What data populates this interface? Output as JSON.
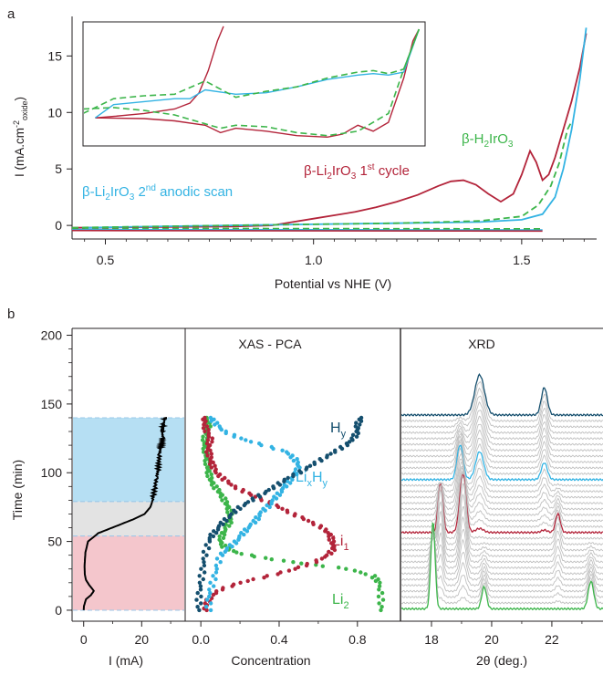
{
  "colors": {
    "red": "#b3243a",
    "cyan": "#33b3e3",
    "green": "#3cb54a",
    "navy": "#154f6e",
    "gray": "#c0c0c0",
    "blue_band": "#b6dff3",
    "gray_band": "#e3e3e3",
    "red_band": "#f4c6cc",
    "axis": "#231f20"
  },
  "panel_a": {
    "label": "a",
    "chart_data": {
      "type": "line",
      "xlabel": "Potential vs NHE (V)",
      "ylabel_parts": [
        "I (mA.cm",
        "-2",
        "oxide",
        ")"
      ],
      "xlim": [
        0.42,
        1.68
      ],
      "ylim": [
        -1.2,
        18.5
      ],
      "xticks": [
        "0.5",
        "1.0",
        "1.5"
      ],
      "xtick_values": [
        0.5,
        1.0,
        1.5
      ],
      "yticks": [
        "0",
        "5",
        "10",
        "15"
      ],
      "ytick_values": [
        0,
        5,
        10,
        15
      ],
      "series": [
        {
          "label_parts": [
            "β-Li",
            "2",
            "IrO",
            "3",
            " 1",
            "st",
            " cycle"
          ],
          "color_key": "red",
          "x": [
            0.42,
            0.6,
            0.8,
            0.9,
            0.95,
            1.0,
            1.05,
            1.1,
            1.15,
            1.2,
            1.25,
            1.3,
            1.33,
            1.36,
            1.39,
            1.42,
            1.45,
            1.48,
            1.5,
            1.52,
            1.535,
            1.55,
            1.565,
            1.58,
            1.6,
            1.62,
            1.64,
            1.655
          ],
          "y": [
            -0.2,
            -0.15,
            -0.1,
            0.0,
            0.3,
            0.6,
            0.9,
            1.2,
            1.6,
            2.1,
            2.7,
            3.5,
            3.9,
            4.0,
            3.6,
            2.8,
            2.1,
            2.8,
            4.5,
            6.6,
            5.6,
            4.0,
            4.5,
            6.0,
            8.5,
            11.0,
            14.0,
            17.0
          ]
        },
        {
          "label_parts": [
            "β-Li",
            "2",
            "IrO",
            "3",
            " 2",
            "nd",
            " anodic scan"
          ],
          "color_key": "cyan",
          "x": [
            0.45,
            0.6,
            0.8,
            1.0,
            1.2,
            1.4,
            1.5,
            1.55,
            1.58,
            1.6,
            1.62,
            1.64,
            1.655
          ],
          "y": [
            -0.2,
            -0.1,
            0.0,
            0.1,
            0.2,
            0.3,
            0.5,
            1.0,
            2.5,
            5.0,
            8.5,
            13.0,
            17.5
          ]
        },
        {
          "label_parts": [
            "β-H",
            "2",
            "IrO",
            "3"
          ],
          "color_key": "green",
          "x": [
            0.42,
            0.6,
            0.8,
            1.0,
            1.2,
            1.4,
            1.5,
            1.54,
            1.57,
            1.59,
            1.61,
            1.62
          ],
          "y": [
            -0.2,
            -0.1,
            0.0,
            0.1,
            0.2,
            0.4,
            0.8,
            1.8,
            3.5,
            5.5,
            8.5,
            9.2
          ]
        }
      ],
      "inset": {
        "cyan_x": [
          0.44,
          0.5,
          0.6,
          0.7,
          0.75,
          0.8,
          0.9,
          1.0,
          1.1,
          1.2,
          1.3,
          1.35,
          1.4,
          1.45,
          1.5
        ],
        "cyan_y": [
          0.3,
          1.2,
          1.4,
          1.6,
          1.6,
          2.2,
          1.9,
          2.0,
          2.4,
          2.9,
          3.2,
          3.3,
          3.2,
          3.4,
          6.3
        ],
        "red_upper_x": [
          0.44,
          0.5,
          0.6,
          0.7,
          0.75,
          0.78,
          0.81,
          0.84,
          0.86
        ],
        "red_upper_y": [
          0.3,
          0.4,
          0.6,
          0.9,
          1.3,
          2.0,
          3.5,
          5.5,
          6.5
        ],
        "red_lower_x": [
          0.44,
          0.6,
          0.7,
          0.8,
          0.85,
          0.9,
          1.0,
          1.1,
          1.2,
          1.25,
          1.3,
          1.35,
          1.4,
          1.45,
          1.48,
          1.5
        ],
        "red_lower_y": [
          0.3,
          0.25,
          0.1,
          -0.2,
          -0.7,
          -0.4,
          -0.6,
          -0.9,
          -1.0,
          -0.8,
          -0.2,
          -0.6,
          0.0,
          3.0,
          5.5,
          6.3
        ],
        "green_upper_x": [
          0.4,
          0.5,
          0.6,
          0.7,
          0.8,
          0.9,
          1.0,
          1.1,
          1.2,
          1.3,
          1.35,
          1.4,
          1.45,
          1.5
        ],
        "green_upper_y": [
          0.6,
          1.6,
          1.8,
          1.9,
          2.8,
          1.7,
          2.1,
          2.4,
          3.0,
          3.4,
          3.5,
          3.3,
          3.6,
          6.3
        ],
        "green_lower_x": [
          0.4,
          0.5,
          0.6,
          0.7,
          0.8,
          0.85,
          0.9,
          1.0,
          1.1,
          1.2,
          1.3,
          1.35,
          1.4,
          1.45,
          1.5
        ],
        "green_lower_y": [
          0.9,
          1.0,
          0.8,
          0.5,
          -0.1,
          -0.4,
          -0.2,
          -0.3,
          -0.7,
          -0.9,
          -0.6,
          0.0,
          0.6,
          3.6,
          6.3
        ]
      }
    }
  },
  "panel_b": {
    "label": "b",
    "time_axis": {
      "ylabel": "Time (min)",
      "ylim": [
        -8,
        205
      ],
      "yticks": [
        "0",
        "50",
        "100",
        "150",
        "200"
      ],
      "ytick_values": [
        0,
        50,
        100,
        150,
        200
      ]
    },
    "current": {
      "chart_data": {
        "type": "line",
        "xlabel": "I (mA)",
        "xlim": [
          -4,
          35
        ],
        "xticks": [
          "0",
          "20"
        ],
        "xtick_values": [
          0,
          20
        ],
        "bands": [
          {
            "color_key": "blue_band",
            "from": 79,
            "to": 140
          },
          {
            "color_key": "gray_band",
            "from": 54,
            "to": 79
          },
          {
            "color_key": "red_band",
            "from": 0,
            "to": 54
          }
        ],
        "x": [
          0,
          0.1,
          0.8,
          2.5,
          3.5,
          2.0,
          0.8,
          0.4,
          0.3,
          0.6,
          1.5,
          5.0,
          11.0,
          17.0,
          21.0,
          23.0,
          23.5,
          24.0,
          24.6,
          25.2,
          25.6,
          25.9,
          26.2,
          26.5,
          27.0,
          27.3,
          27.0,
          27.3,
          27.6,
          28.0,
          28.2
        ],
        "y": [
          0,
          3,
          8,
          11,
          14,
          18,
          22,
          26,
          32,
          42,
          50,
          56,
          61,
          66,
          70,
          75,
          78,
          83,
          90,
          97,
          102,
          108,
          114,
          118,
          122,
          126,
          130,
          133,
          136,
          139,
          140
        ]
      }
    },
    "pca": {
      "title": "XAS - PCA",
      "chart_data": {
        "type": "scatter",
        "xlabel": "Concentration",
        "xlim": [
          -0.08,
          1.02
        ],
        "xticks": [
          "0.0",
          "0.4",
          "0.8"
        ],
        "xtick_values": [
          0.0,
          0.4,
          0.8
        ],
        "series": [
          {
            "label_parts": [
              "Li",
              "2"
            ],
            "color_key": "green",
            "t": [
              0,
              10,
              20,
              25,
              30,
              34,
              38,
              42,
              46,
              50,
              55,
              60,
              65,
              70,
              75,
              80,
              85,
              90,
              95,
              100,
              105,
              110,
              115,
              120,
              125,
              130,
              135,
              140
            ],
            "c": [
              0.92,
              0.92,
              0.91,
              0.88,
              0.75,
              0.52,
              0.32,
              0.18,
              0.12,
              0.1,
              0.11,
              0.13,
              0.15,
              0.15,
              0.14,
              0.12,
              0.1,
              0.07,
              0.05,
              0.04,
              0.035,
              0.03,
              0.025,
              0.02,
              0.02,
              0.03,
              0.04,
              0.03
            ]
          },
          {
            "label_parts": [
              "Li",
              "1"
            ],
            "color_key": "red",
            "t": [
              0,
              5,
              10,
              15,
              20,
              25,
              30,
              35,
              40,
              45,
              50,
              55,
              60,
              65,
              70,
              75,
              80,
              85,
              90,
              95,
              100,
              105,
              110,
              115,
              120,
              125,
              130,
              135,
              140
            ],
            "c": [
              0.02,
              0.03,
              0.05,
              0.1,
              0.2,
              0.35,
              0.48,
              0.58,
              0.65,
              0.68,
              0.67,
              0.66,
              0.62,
              0.55,
              0.47,
              0.4,
              0.32,
              0.24,
              0.17,
              0.12,
              0.08,
              0.06,
              0.05,
              0.04,
              0.04,
              0.05,
              0.03,
              0.02,
              0.02
            ]
          },
          {
            "label_parts": [
              "Li",
              "x",
              "H",
              "y"
            ],
            "color_key": "cyan",
            "t": [
              0,
              10,
              20,
              30,
              40,
              45,
              50,
              55,
              60,
              65,
              70,
              75,
              80,
              85,
              90,
              95,
              100,
              105,
              110,
              115,
              120,
              125,
              130,
              135,
              140
            ],
            "c": [
              0.04,
              0.04,
              0.06,
              0.08,
              0.1,
              0.14,
              0.18,
              0.21,
              0.24,
              0.28,
              0.3,
              0.34,
              0.37,
              0.4,
              0.43,
              0.46,
              0.49,
              0.5,
              0.48,
              0.44,
              0.32,
              0.2,
              0.12,
              0.08,
              0.05
            ]
          },
          {
            "label_parts": [
              "H",
              "y"
            ],
            "color_key": "navy",
            "t": [
              0,
              10,
              20,
              30,
              40,
              50,
              55,
              60,
              65,
              70,
              75,
              80,
              85,
              90,
              95,
              100,
              105,
              110,
              115,
              120,
              125,
              130,
              135,
              140
            ],
            "c": [
              -0.01,
              -0.01,
              0.0,
              0.01,
              0.02,
              0.04,
              0.06,
              0.09,
              0.12,
              0.16,
              0.2,
              0.26,
              0.32,
              0.38,
              0.43,
              0.5,
              0.56,
              0.62,
              0.68,
              0.74,
              0.78,
              0.8,
              0.8,
              0.82
            ]
          }
        ]
      }
    },
    "xrd": {
      "title": "XRD",
      "chart_data": {
        "type": "line",
        "xlabel": "2θ (deg.)",
        "xlim": [
          17.0,
          23.7
        ],
        "xticks": [
          "18",
          "20",
          "22"
        ],
        "xtick_values": [
          18,
          20,
          22
        ],
        "stack": {
          "count": 34,
          "t_start": 1,
          "t_end": 142,
          "highlighted": [
            {
              "index": 0,
              "color_key": "green"
            },
            {
              "index": 13,
              "color_key": "red"
            },
            {
              "index": 22,
              "color_key": "cyan"
            },
            {
              "index": 33,
              "color_key": "navy"
            }
          ]
        },
        "phases": [
          {
            "peaks": [
              [
                18.05,
                95,
                0.07
              ],
              [
                19.75,
                24,
                0.08
              ],
              [
                23.3,
                30,
                0.09
              ]
            ]
          },
          {
            "peaks": [
              [
                18.3,
                62,
                0.08
              ],
              [
                19.05,
                70,
                0.1
              ],
              [
                22.2,
                24,
                0.08
              ]
            ]
          },
          {
            "peaks": [
              [
                18.95,
                40,
                0.1
              ],
              [
                19.6,
                30,
                0.13
              ],
              [
                21.75,
                18,
                0.1
              ]
            ]
          },
          {
            "peaks": [
              [
                19.6,
                44,
                0.16
              ],
              [
                21.75,
                30,
                0.1
              ]
            ]
          }
        ]
      }
    }
  }
}
